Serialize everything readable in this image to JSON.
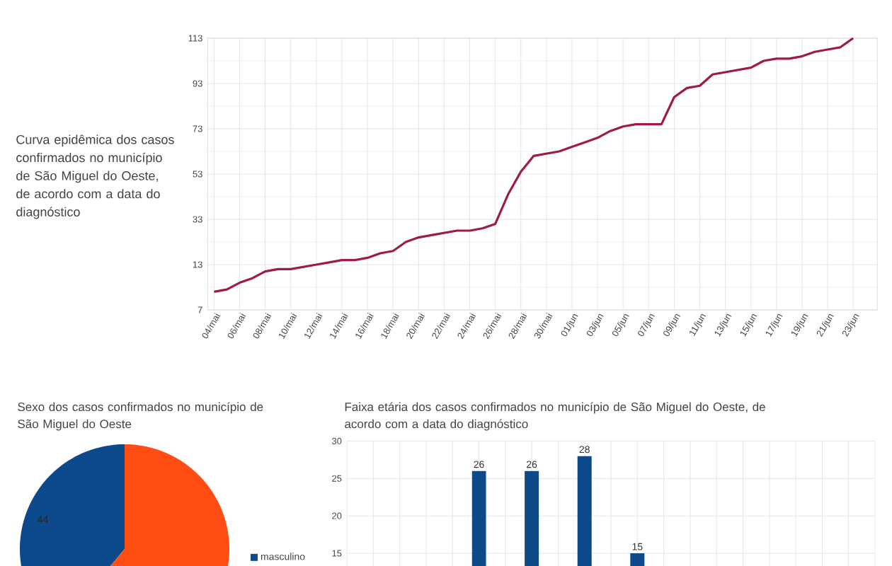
{
  "chart_data": [
    {
      "type": "line",
      "title": "Curva epidêmica dos casos confirmados no município de São Miguel do Oeste, de acordo com a data do diagnóstico",
      "categories": [
        "04/mai",
        null,
        "06/mai",
        null,
        "08/mai",
        null,
        "10/mai",
        null,
        "12/mai",
        null,
        "14/mai",
        null,
        "16/mai",
        null,
        "18/mai",
        null,
        "20/mai",
        null,
        "22/mai",
        null,
        "24/mai",
        null,
        "26/mai",
        null,
        "28/mai",
        null,
        "30/mai",
        null,
        "01/jun",
        null,
        "03/jun",
        null,
        "05/jun",
        null,
        "07/jun",
        null,
        "09/jun",
        null,
        "11/jun",
        null,
        "13/jun",
        null,
        "15/jun",
        null,
        "17/jun",
        null,
        "19/jun",
        null,
        "21/jun",
        null,
        "23/jun"
      ],
      "series": [
        {
          "color": "#9e1a4b",
          "values": [
            1,
            2,
            5,
            7,
            10,
            11,
            11,
            12,
            13,
            14,
            15,
            15,
            16,
            18,
            19,
            23,
            25,
            26,
            27,
            28,
            28,
            29,
            31,
            44,
            54,
            61,
            62,
            63,
            65,
            67,
            69,
            72,
            74,
            75,
            75,
            75,
            87,
            91,
            92,
            97,
            98,
            99,
            100,
            103,
            104,
            104,
            105,
            107,
            108,
            109,
            113
          ]
        }
      ],
      "ylim": [
        -7,
        113
      ],
      "yticks": [
        {
          "value": -7,
          "label": "7"
        },
        13,
        33,
        53,
        73,
        93,
        113
      ],
      "grid": true
    },
    {
      "type": "pie",
      "title": "Sexo dos casos confirmados no município de São Miguel do Oeste",
      "categories": [
        "masculino",
        null
      ],
      "values": [
        44,
        69
      ],
      "colors": [
        "#0d4a8c",
        "#ff4d14"
      ],
      "value_labels": [
        "44",
        null
      ],
      "legend": "right"
    },
    {
      "type": "bar",
      "title": "Faixa etária dos casos confirmados no município de São Miguel do Oeste, de acordo com a data do diagnóstico",
      "categories": [
        null,
        null,
        null,
        null,
        null,
        null,
        null,
        null,
        null,
        null
      ],
      "values": [
        null,
        null,
        26,
        26,
        28,
        15,
        null,
        null,
        null,
        null
      ],
      "color": "#0d4a8c",
      "ylim": [
        13.3,
        30
      ],
      "yticks": [
        15,
        20,
        25,
        30
      ],
      "grid": true,
      "data_labels": true
    }
  ]
}
